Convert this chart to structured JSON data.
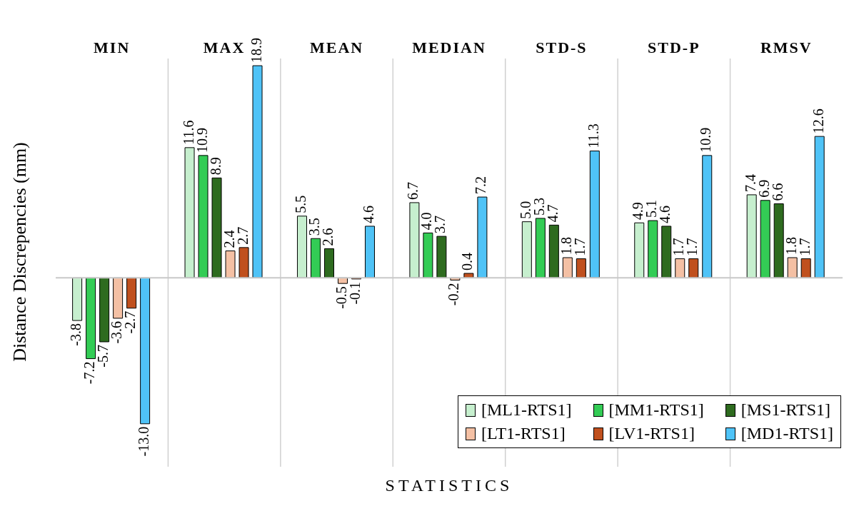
{
  "chart_data": {
    "type": "bar",
    "xlabel": "STATISTICS",
    "ylabel": "Distance  Discrepencies (mm)",
    "categories": [
      "MIN",
      "MAX",
      "MEAN",
      "MEDIAN",
      "STD-S",
      "STD-P",
      "RMSV"
    ],
    "series": [
      {
        "name": "[ML1-RTS1]",
        "color": "#c6efce",
        "values": [
          -3.8,
          11.6,
          5.5,
          6.7,
          5.0,
          4.9,
          7.4
        ],
        "value_labels": [
          "-3.8",
          "11.6",
          "5.5",
          "6.7",
          "5.0",
          "4.9",
          "7.4"
        ]
      },
      {
        "name": "[MM1-RTS1]",
        "color": "#33cc55",
        "values": [
          -7.2,
          10.9,
          3.5,
          4.0,
          5.3,
          5.1,
          6.9
        ],
        "value_labels": [
          "-7.2",
          "10.9",
          "3.5",
          "4.0",
          "5.3",
          "5.1",
          "6.9"
        ]
      },
      {
        "name": "[MS1-RTS1]",
        "color": "#2e6b1f",
        "values": [
          -5.7,
          8.9,
          2.6,
          3.7,
          4.7,
          4.6,
          6.6
        ],
        "value_labels": [
          "-5.7",
          "8.9",
          "2.6",
          "3.7",
          "4.7",
          "4.6",
          "6.6"
        ]
      },
      {
        "name": "[LT1-RTS1]",
        "color": "#f4c0a4",
        "values": [
          -3.6,
          2.4,
          -0.5,
          -0.2,
          1.8,
          1.7,
          1.8
        ],
        "value_labels": [
          "-3.6",
          "2.4",
          "-0.5",
          "-0.2",
          "1.8",
          "1.7",
          "1.8"
        ]
      },
      {
        "name": "[LV1-RTS1]",
        "color": "#c0501e",
        "values": [
          -2.7,
          2.7,
          -0.1,
          0.4,
          1.7,
          1.7,
          1.7
        ],
        "value_labels": [
          "-2.7",
          "2.7",
          "-0.1",
          "0.4",
          "1.7",
          "1.7",
          "1.7"
        ]
      },
      {
        "name": "[MD1-RTS1]",
        "color": "#4fc3f7",
        "values": [
          -13.0,
          18.9,
          4.6,
          7.2,
          11.3,
          10.9,
          12.6
        ],
        "value_labels": [
          "-13.0",
          "18.9",
          "4.6",
          "7.2",
          "11.3",
          "10.9",
          "12.6"
        ]
      }
    ],
    "grid": "x",
    "legend": "bottom right"
  }
}
